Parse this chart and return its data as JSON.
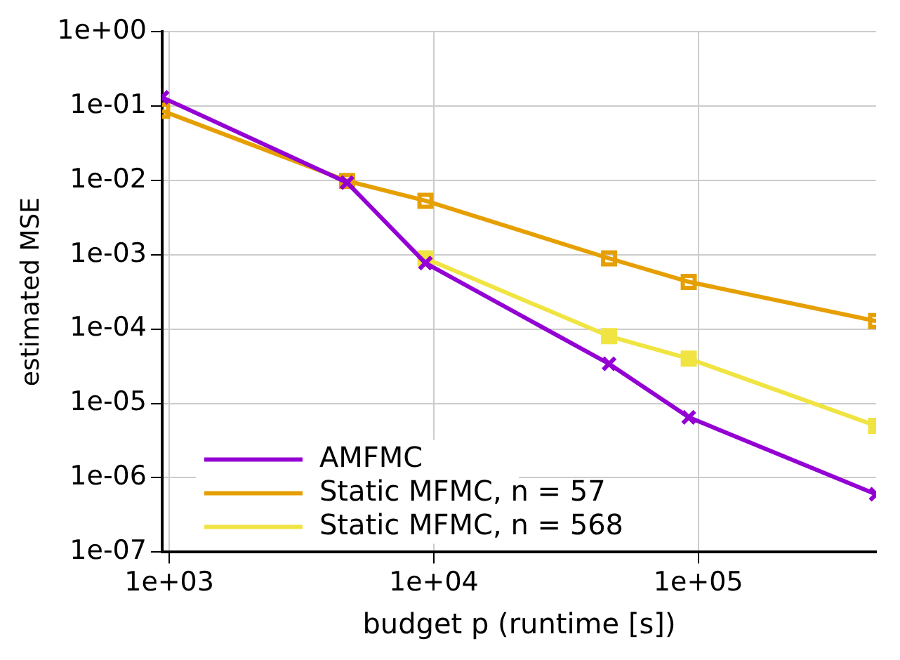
{
  "chart_data": {
    "type": "line",
    "xlabel": "budget p (runtime [s])",
    "ylabel": "estimated MSE",
    "log": "xy",
    "grid": true,
    "legend": "bottom left",
    "x": [
      940,
      4700,
      9300,
      46000,
      92000,
      470000
    ],
    "xlim": [
      940,
      470000
    ],
    "xticks": [
      {
        "value": 1000,
        "label": "1e+03"
      },
      {
        "value": 10000,
        "label": "1e+04"
      },
      {
        "value": 100000,
        "label": "1e+05"
      }
    ],
    "ylim": [
      1e-07,
      1
    ],
    "yticks": [
      {
        "value": 1,
        "label": "1e+00"
      },
      {
        "value": 0.1,
        "label": "1e-01"
      },
      {
        "value": 0.01,
        "label": "1e-02"
      },
      {
        "value": 0.001,
        "label": "1e-03"
      },
      {
        "value": 0.0001,
        "label": "1e-04"
      },
      {
        "value": 1e-05,
        "label": "1e-05"
      },
      {
        "value": 1e-06,
        "label": "1e-06"
      },
      {
        "value": 1e-07,
        "label": "1e-07"
      }
    ],
    "series": [
      {
        "name": "AMFMC",
        "color": "#9400d3",
        "marker": "cross",
        "values": [
          0.13,
          0.0093,
          0.00077,
          3.4e-05,
          6.5e-06,
          6e-07
        ]
      },
      {
        "name": "Static MFMC, n = 57",
        "color": "#e69f00",
        "marker": "square_open",
        "values": [
          0.086,
          0.0098,
          0.0053,
          0.00089,
          0.00043,
          0.000128
        ]
      },
      {
        "name": "Static MFMC, n = 568",
        "color": "#f0e442",
        "marker": "square",
        "values": [
          null,
          null,
          0.00089,
          8e-05,
          4e-05,
          5e-06
        ]
      }
    ]
  }
}
